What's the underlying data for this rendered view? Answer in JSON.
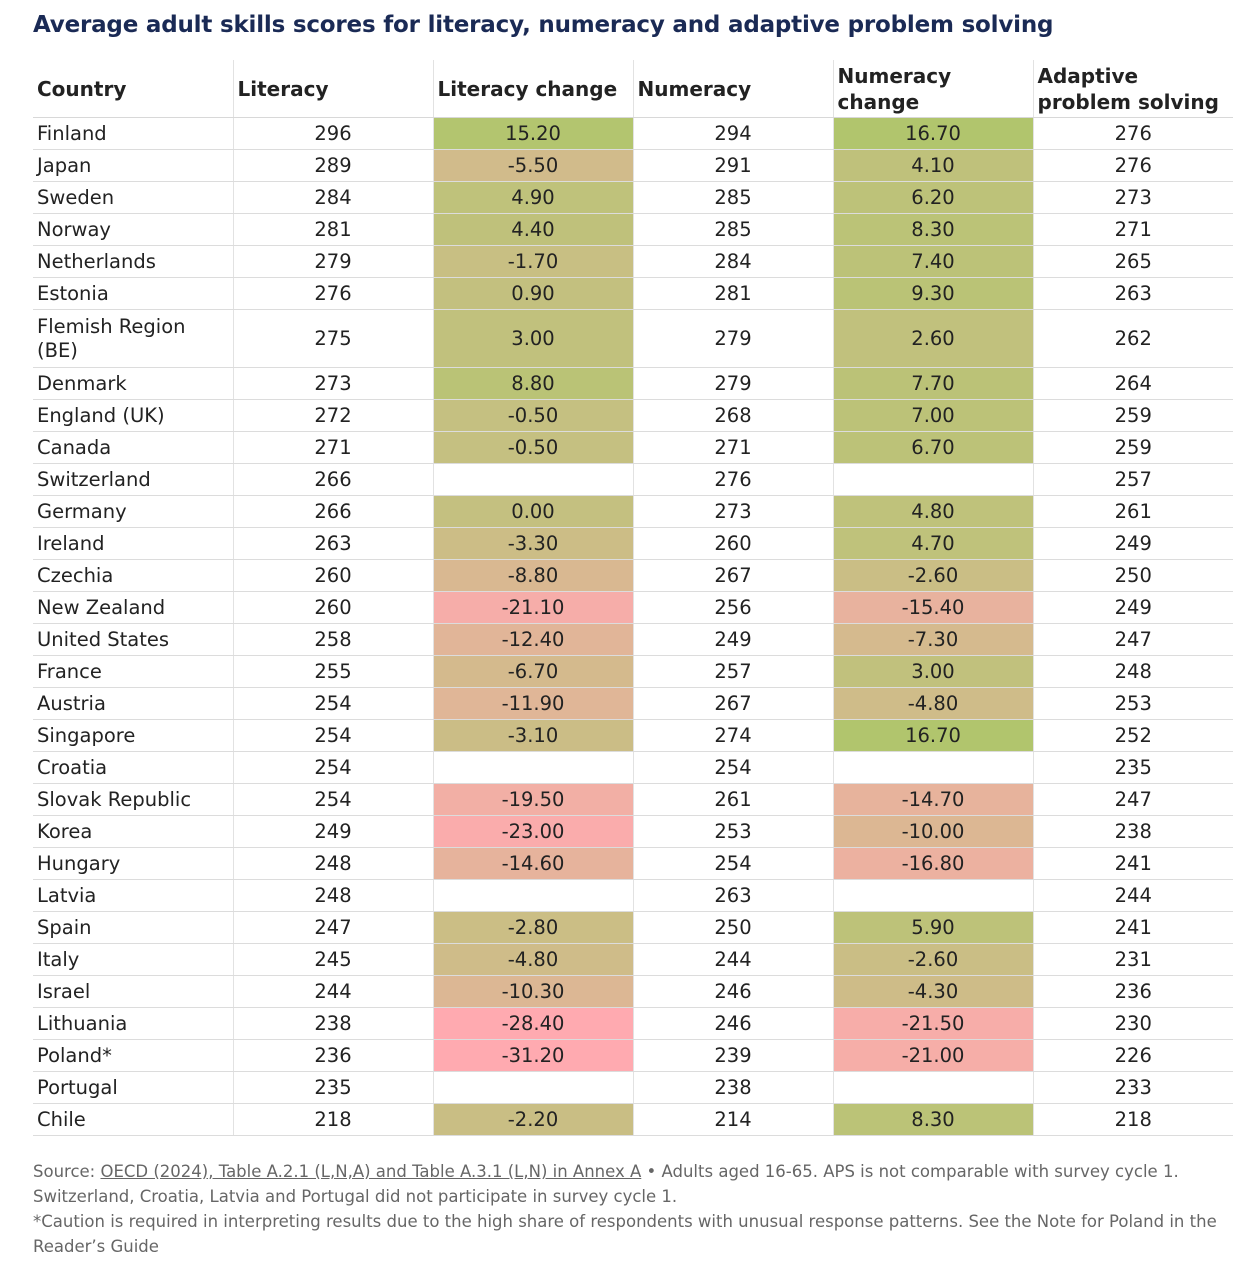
{
  "title": "Average adult skills scores for literacy, numeracy and adaptive problem solving",
  "colors": {
    "title": "#1a2a55",
    "positive_strong": "#a8c864",
    "neutral": "#c4c080",
    "negative_strong": "#ffaab0"
  },
  "chart_data": {
    "type": "table",
    "columns": [
      "Country",
      "Literacy",
      "Literacy change",
      "Numeracy",
      "Numeracy change",
      "Adaptive problem solving"
    ],
    "rows": [
      [
        "Finland",
        "296",
        "15.20",
        "294",
        "16.70",
        "276"
      ],
      [
        "Japan",
        "289",
        "-5.50",
        "291",
        "4.10",
        "276"
      ],
      [
        "Sweden",
        "284",
        "4.90",
        "285",
        "6.20",
        "273"
      ],
      [
        "Norway",
        "281",
        "4.40",
        "285",
        "8.30",
        "271"
      ],
      [
        "Netherlands",
        "279",
        "-1.70",
        "284",
        "7.40",
        "265"
      ],
      [
        "Estonia",
        "276",
        "0.90",
        "281",
        "9.30",
        "263"
      ],
      [
        "Flemish Region (BE)",
        "275",
        "3.00",
        "279",
        "2.60",
        "262"
      ],
      [
        "Denmark",
        "273",
        "8.80",
        "279",
        "7.70",
        "264"
      ],
      [
        "England (UK)",
        "272",
        "-0.50",
        "268",
        "7.00",
        "259"
      ],
      [
        "Canada",
        "271",
        "-0.50",
        "271",
        "6.70",
        "259"
      ],
      [
        "Switzerland",
        "266",
        "",
        "276",
        "",
        "257"
      ],
      [
        "Germany",
        "266",
        "0.00",
        "273",
        "4.80",
        "261"
      ],
      [
        "Ireland",
        "263",
        "-3.30",
        "260",
        "4.70",
        "249"
      ],
      [
        "Czechia",
        "260",
        "-8.80",
        "267",
        "-2.60",
        "250"
      ],
      [
        "New Zealand",
        "260",
        "-21.10",
        "256",
        "-15.40",
        "249"
      ],
      [
        "United States",
        "258",
        "-12.40",
        "249",
        "-7.30",
        "247"
      ],
      [
        "France",
        "255",
        "-6.70",
        "257",
        "3.00",
        "248"
      ],
      [
        "Austria",
        "254",
        "-11.90",
        "267",
        "-4.80",
        "253"
      ],
      [
        "Singapore",
        "254",
        "-3.10",
        "274",
        "16.70",
        "252"
      ],
      [
        "Croatia",
        "254",
        "",
        "254",
        "",
        "235"
      ],
      [
        "Slovak Republic",
        "254",
        "-19.50",
        "261",
        "-14.70",
        "247"
      ],
      [
        "Korea",
        "249",
        "-23.00",
        "253",
        "-10.00",
        "238"
      ],
      [
        "Hungary",
        "248",
        "-14.60",
        "254",
        "-16.80",
        "241"
      ],
      [
        "Latvia",
        "248",
        "",
        "263",
        "",
        "244"
      ],
      [
        "Spain",
        "247",
        "-2.80",
        "250",
        "5.90",
        "241"
      ],
      [
        "Italy",
        "245",
        "-4.80",
        "244",
        "-2.60",
        "231"
      ],
      [
        "Israel",
        "244",
        "-10.30",
        "246",
        "-4.30",
        "236"
      ],
      [
        "Lithuania",
        "238",
        "-28.40",
        "246",
        "-21.50",
        "230"
      ],
      [
        "Poland*",
        "236",
        "-31.20",
        "239",
        "-21.00",
        "226"
      ],
      [
        "Portugal",
        "235",
        "",
        "238",
        "",
        "233"
      ],
      [
        "Chile",
        "218",
        "-2.20",
        "214",
        "8.30",
        "218"
      ]
    ]
  },
  "footer": {
    "source_label": "Source: ",
    "source_link": "OECD (2024), Table A.2.1 (L,N,A) and Table A.3.1 (L,N) in Annex A",
    "source_rest": " • Adults aged 16-65. APS is not comparable with survey cycle 1. Switzerland, Croatia, Latvia and Portugal did not participate in survey cycle 1.",
    "caution": "*Caution is required in interpreting results due to the high share of respondents with unusual response patterns. See the Note for Poland in the Reader’s Guide"
  }
}
